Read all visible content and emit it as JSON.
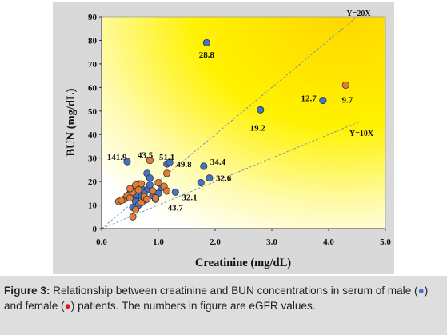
{
  "chart_data": {
    "type": "scatter",
    "title": "",
    "xlabel": "Creatinine (mg/dL)",
    "ylabel": "BUN (mg/dL)",
    "xlim": [
      0,
      5
    ],
    "ylim": [
      0,
      90
    ],
    "xticks": [
      "0.0",
      "1.0",
      "2.0",
      "3.0",
      "4.0",
      "5.0"
    ],
    "yticks": [
      "0",
      "10",
      "20",
      "30",
      "40",
      "50",
      "60",
      "70",
      "80",
      "90"
    ],
    "grid": false,
    "legend": "none",
    "background": "gradient yellow to white",
    "reference_lines": [
      {
        "label": "Y=20X",
        "slope": 20,
        "x_end": 4.55
      },
      {
        "label": "Y=10X",
        "slope": 10,
        "x_end": 4.55
      }
    ],
    "series": [
      {
        "name": "male",
        "color": "#4472c4",
        "points": [
          [
            1.85,
            79
          ],
          [
            3.9,
            54.5
          ],
          [
            2.8,
            50.5
          ],
          [
            1.8,
            26.5
          ],
          [
            1.75,
            19.5
          ],
          [
            1.9,
            21.5
          ],
          [
            1.3,
            15.5
          ],
          [
            1.15,
            27.5
          ],
          [
            1.2,
            28.2
          ],
          [
            0.45,
            28.5
          ],
          [
            0.8,
            23.5
          ],
          [
            0.85,
            21.5
          ],
          [
            0.5,
            15
          ],
          [
            0.55,
            17
          ],
          [
            0.6,
            12.5
          ],
          [
            0.65,
            19
          ],
          [
            0.7,
            14
          ],
          [
            0.75,
            12
          ],
          [
            0.9,
            14
          ],
          [
            0.95,
            12.5
          ],
          [
            1.0,
            15
          ],
          [
            0.55,
            9
          ],
          [
            0.6,
            11.5
          ],
          [
            0.65,
            10
          ],
          [
            0.8,
            16.5
          ],
          [
            0.85,
            18.5
          ],
          [
            0.7,
            17
          ],
          [
            0.6,
            14.5
          ],
          [
            0.75,
            15
          ],
          [
            1.05,
            17.5
          ]
        ]
      },
      {
        "name": "female",
        "color": "#e07b39",
        "points": [
          [
            4.3,
            61
          ],
          [
            0.85,
            29
          ],
          [
            1.15,
            23.5
          ],
          [
            0.3,
            11.5
          ],
          [
            0.4,
            12.5
          ],
          [
            0.45,
            14
          ],
          [
            0.5,
            13
          ],
          [
            0.55,
            15.5
          ],
          [
            0.6,
            18.5
          ],
          [
            0.65,
            16.5
          ],
          [
            0.7,
            11
          ],
          [
            0.75,
            13.5
          ],
          [
            0.5,
            17
          ],
          [
            1.0,
            19.5
          ],
          [
            1.1,
            18
          ],
          [
            1.15,
            16
          ],
          [
            0.9,
            16
          ],
          [
            0.8,
            12.5
          ],
          [
            0.55,
            5
          ],
          [
            0.35,
            12
          ],
          [
            0.6,
            8
          ],
          [
            0.7,
            19
          ],
          [
            0.95,
            13
          ]
        ]
      }
    ],
    "annotations": [
      {
        "text": "28.8",
        "x": 1.85,
        "y": 74
      },
      {
        "text": "12.7",
        "x": 3.65,
        "y": 55.5
      },
      {
        "text": "9.7",
        "x": 4.33,
        "y": 54.8
      },
      {
        "text": "19.2",
        "x": 2.75,
        "y": 43
      },
      {
        "text": "141.9",
        "x": 0.27,
        "y": 30.5
      },
      {
        "text": "43.5",
        "x": 0.77,
        "y": 31.5
      },
      {
        "text": "51.1",
        "x": 1.15,
        "y": 30.5
      },
      {
        "text": "49.8",
        "x": 1.45,
        "y": 27.5
      },
      {
        "text": "34.4",
        "x": 2.05,
        "y": 28.5
      },
      {
        "text": "32.6",
        "x": 2.15,
        "y": 21.5
      },
      {
        "text": "32.1",
        "x": 1.55,
        "y": 13.5
      },
      {
        "text": "43.7",
        "x": 1.3,
        "y": 9
      }
    ]
  },
  "caption": {
    "label": "Figure 3:",
    "text_before_male": " Relationship between creatinine and BUN concentrations in serum of male (",
    "male_marker": "●",
    "text_between": ") and female (",
    "female_marker": "●",
    "text_after": ") patients. The numbers in figure are eGFR values.",
    "male_color": "#4472c4",
    "female_color": "#e01b1b"
  }
}
